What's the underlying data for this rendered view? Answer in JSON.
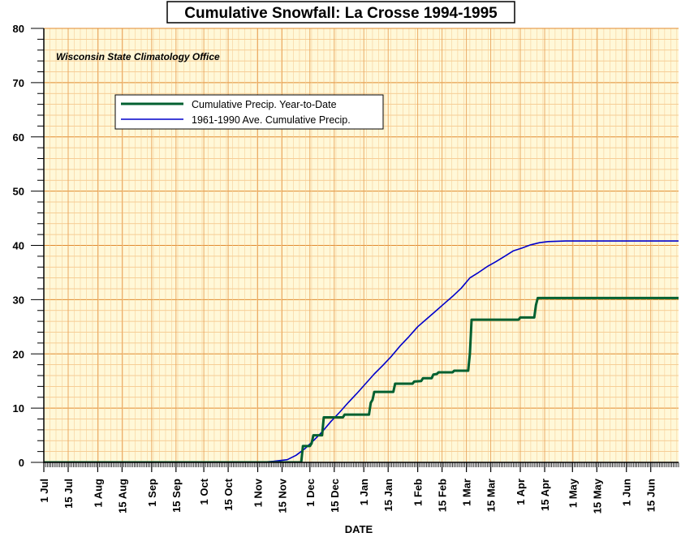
{
  "chart_data": {
    "type": "line",
    "title": "Cumulative Snowfall: La Crosse 1994-1995",
    "annotation": "Wisconsin State Climatology Office",
    "xlabel": "DATE",
    "ylabel": "",
    "ylim": [
      0,
      80
    ],
    "yticks": [
      0,
      10,
      20,
      30,
      40,
      50,
      60,
      70,
      80
    ],
    "x_unit": "days from 1 Jul",
    "xlim": [
      0,
      365
    ],
    "xticks": [
      {
        "label": "1 Jul",
        "day": 0
      },
      {
        "label": "15 Jul",
        "day": 14
      },
      {
        "label": "1 Aug",
        "day": 31
      },
      {
        "label": "15 Aug",
        "day": 45
      },
      {
        "label": "1 Sep",
        "day": 62
      },
      {
        "label": "15 Sep",
        "day": 76
      },
      {
        "label": "1 Oct",
        "day": 92
      },
      {
        "label": "15 Oct",
        "day": 106
      },
      {
        "label": "1 Nov",
        "day": 123
      },
      {
        "label": "15 Nov",
        "day": 137
      },
      {
        "label": "1 Dec",
        "day": 153
      },
      {
        "label": "15 Dec",
        "day": 167
      },
      {
        "label": "1 Jan",
        "day": 184
      },
      {
        "label": "15 Jan",
        "day": 198
      },
      {
        "label": "1 Feb",
        "day": 215
      },
      {
        "label": "15 Feb",
        "day": 229
      },
      {
        "label": "1 Mar",
        "day": 243
      },
      {
        "label": "15 Mar",
        "day": 257
      },
      {
        "label": "1 Apr",
        "day": 274
      },
      {
        "label": "15 Apr",
        "day": 288
      },
      {
        "label": "1 May",
        "day": 304
      },
      {
        "label": "15 May",
        "day": 318
      },
      {
        "label": "1 Jun",
        "day": 335
      },
      {
        "label": "15 Jun",
        "day": 349
      }
    ],
    "grid": true,
    "legend_position": "top-left",
    "series": [
      {
        "name": "Cumulative Precip. Year-to-Date",
        "color": "#006030",
        "style": "step",
        "points": [
          [
            0,
            0
          ],
          [
            148,
            0
          ],
          [
            149,
            3
          ],
          [
            153,
            3
          ],
          [
            154,
            3.5
          ],
          [
            155,
            5
          ],
          [
            160,
            5
          ],
          [
            161,
            8.3
          ],
          [
            172,
            8.3
          ],
          [
            173,
            8.8
          ],
          [
            187,
            8.8
          ],
          [
            188,
            11
          ],
          [
            189,
            11.5
          ],
          [
            190,
            13
          ],
          [
            201,
            13
          ],
          [
            202,
            14.5
          ],
          [
            212,
            14.5
          ],
          [
            213,
            14.9
          ],
          [
            217,
            15
          ],
          [
            218,
            15.5
          ],
          [
            223,
            15.5
          ],
          [
            224,
            16.2
          ],
          [
            226,
            16.3
          ],
          [
            227,
            16.6
          ],
          [
            235,
            16.6
          ],
          [
            236,
            16.9
          ],
          [
            244,
            16.9
          ],
          [
            245,
            20
          ],
          [
            246,
            26.3
          ],
          [
            273,
            26.3
          ],
          [
            274,
            26.7
          ],
          [
            282,
            26.7
          ],
          [
            283,
            29
          ],
          [
            284,
            30.3
          ],
          [
            365,
            30.3
          ]
        ]
      },
      {
        "name": "1961-1990 Ave. Cumulative Precip.",
        "color": "#0000cc",
        "style": "line",
        "points": [
          [
            0,
            0
          ],
          [
            124,
            0
          ],
          [
            132,
            0.2
          ],
          [
            140,
            0.5
          ],
          [
            145,
            1.3
          ],
          [
            150,
            2.5
          ],
          [
            155,
            4
          ],
          [
            160,
            5.6
          ],
          [
            165,
            7.5
          ],
          [
            170,
            9.2
          ],
          [
            175,
            11
          ],
          [
            180,
            12.7
          ],
          [
            185,
            14.5
          ],
          [
            190,
            16.3
          ],
          [
            195,
            17.9
          ],
          [
            200,
            19.6
          ],
          [
            205,
            21.5
          ],
          [
            210,
            23.2
          ],
          [
            215,
            25
          ],
          [
            220,
            26.4
          ],
          [
            225,
            27.8
          ],
          [
            230,
            29.2
          ],
          [
            235,
            30.6
          ],
          [
            240,
            32.1
          ],
          [
            245,
            34
          ],
          [
            250,
            35
          ],
          [
            255,
            36.1
          ],
          [
            260,
            37
          ],
          [
            265,
            38
          ],
          [
            270,
            39
          ],
          [
            275,
            39.5
          ],
          [
            280,
            40.1
          ],
          [
            285,
            40.5
          ],
          [
            290,
            40.7
          ],
          [
            300,
            40.8
          ],
          [
            365,
            40.8
          ]
        ]
      }
    ]
  }
}
